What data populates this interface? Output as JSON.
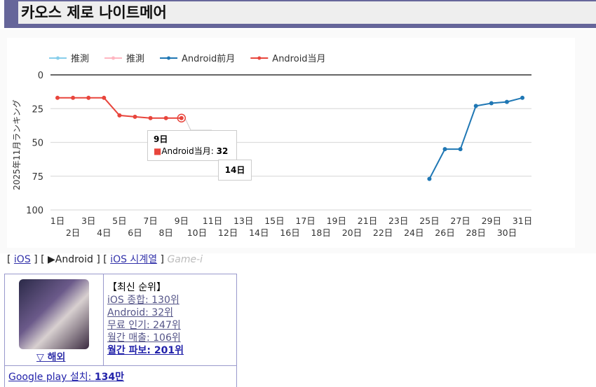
{
  "title": "카오스 제로 나이트메어",
  "chart_data": {
    "type": "line",
    "ylabel": "2025年11月ランキング",
    "ylim": [
      0,
      100
    ],
    "y_inverted": true,
    "yticks": [
      0,
      25,
      50,
      75,
      100
    ],
    "x": [
      1,
      2,
      3,
      4,
      5,
      6,
      7,
      8,
      9,
      10,
      11,
      12,
      13,
      14,
      15,
      16,
      17,
      18,
      19,
      20,
      21,
      22,
      23,
      24,
      25,
      26,
      27,
      28,
      29,
      30,
      31
    ],
    "x_suffix": "日",
    "legend": [
      {
        "name": "推測",
        "color": "#87ceeb"
      },
      {
        "name": "推測",
        "color": "#ffb6c1"
      },
      {
        "name": "Android前月",
        "color": "#1f77b4"
      },
      {
        "name": "Android当月",
        "color": "#e8453c"
      }
    ],
    "series": [
      {
        "name": "Android前月",
        "color": "#1f77b4",
        "points": [
          [
            25,
            77
          ],
          [
            26,
            55
          ],
          [
            27,
            55
          ],
          [
            28,
            23
          ],
          [
            29,
            21
          ],
          [
            30,
            20
          ],
          [
            31,
            17
          ]
        ]
      },
      {
        "name": "Android当月",
        "color": "#e8453c",
        "points": [
          [
            1,
            17
          ],
          [
            2,
            17
          ],
          [
            3,
            17
          ],
          [
            4,
            17
          ],
          [
            5,
            30
          ],
          [
            6,
            31
          ],
          [
            7,
            32
          ],
          [
            8,
            32
          ],
          [
            9,
            32
          ]
        ]
      }
    ],
    "tooltip": {
      "title": "9日",
      "series": "Android当月",
      "value": "32"
    },
    "crosshair_label": "14日"
  },
  "nav": {
    "b1": "[",
    "ios": "iOS",
    "b2": "] [",
    "android": "▶Android",
    "b3": "] [",
    "ios_ts": "iOS 시계열",
    "b4": "]",
    "gamei": "Game-i"
  },
  "card": {
    "region": "▽ 해외",
    "heading": "【최신 순위】",
    "ranks": [
      "iOS 종합: 130위",
      "Android: 32위",
      "무료 인기: 247위",
      "월간 매출: 106위",
      "월간 파보: 201위"
    ],
    "gp_label": "Google play 설치: ",
    "gp_value": "134만"
  }
}
